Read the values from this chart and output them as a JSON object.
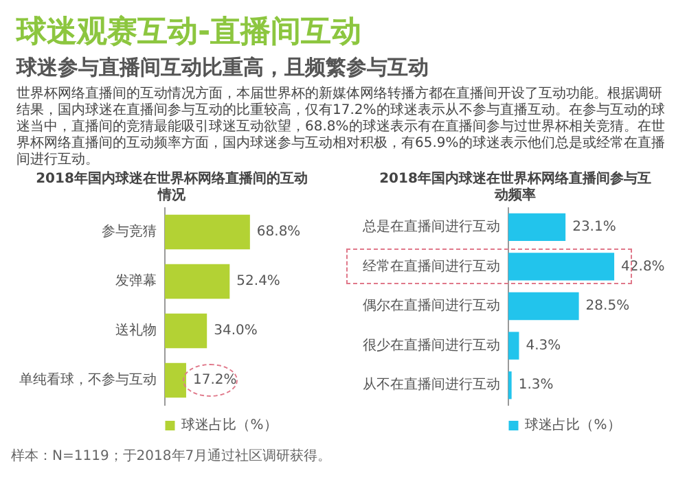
{
  "chart_data": [
    {
      "type": "other",
      "title": "球迷观赛互动-直播间互动",
      "subtitle": "球迷参与直播间互动比重高，且频繁参与互动",
      "annotations": [
        "世界杯网络直播间的互动情况方面，本届世界杯的新媒体网络转播方都在直播间开设了互动功能。根据调研结果，国内球迷在直播间参与互动的比重较高，仅有17.2%的球迷表示从不参与直播互动。在参与互动的球迷当中，直播间的竞猜最能吸引球迷互动欲望，68.8%的球迷表示有在直播间参与过世界杯相关竞猜。在世界杯网络直播间的互动频率方面，国内球迷参与互动相对积极，有65.9%的球迷表示他们总是或经常在直播间进行互动。"
      ]
    },
    {
      "type": "bar",
      "orientation": "horizontal",
      "title": "2018年国内球迷在世界杯网络直播间的互动情况",
      "categories": [
        "参与竞猜",
        "发弹幕",
        "送礼物",
        "单纯看球，不参与互动"
      ],
      "legend": "bottom",
      "annotations": [
        "样本：N=1119；于2018年7月通过社区调研获得。"
      ],
      "series": [
        {
          "name": "球迷占比（%）",
          "color": "#b3d234",
          "values": [
            68.8,
            52.4,
            34.0,
            17.2
          ],
          "value_labels": [
            "68.8%",
            "52.4%",
            "34.0%",
            "17.2%"
          ]
        }
      ]
    },
    {
      "type": "bar",
      "orientation": "horizontal",
      "title": "2018年国内球迷在世界杯网络直播间参与互动频率",
      "categories": [
        "总是在直播间进行互动",
        "经常在直播间进行互动",
        "偶尔在直播间进行互动",
        "很少在直播间进行互动",
        "从不在直播间进行互动"
      ],
      "legend": "bottom",
      "series": [
        {
          "name": "球迷占比（%）",
          "color": "#22c4ec",
          "values": [
            23.1,
            42.8,
            28.5,
            4.3,
            1.3
          ],
          "value_labels": [
            "23.1%",
            "42.8%",
            "28.5%",
            "4.3%",
            "1.3%"
          ]
        }
      ]
    }
  ]
}
